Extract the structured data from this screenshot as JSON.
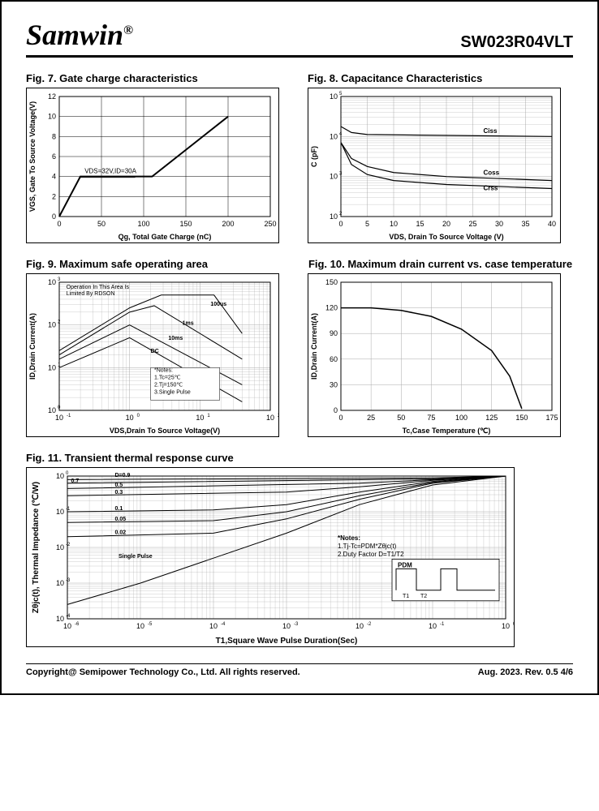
{
  "header": {
    "brand": "Samwin",
    "brand_sup": "®",
    "part": "SW023R04VLT"
  },
  "fig7": {
    "title": "Fig. 7. Gate charge characteristics",
    "type": "line",
    "xlabel": "Qg, Total Gate Charge (nC)",
    "ylabel": "VGS, Gate To Source Voltage(V)",
    "xlim": [
      0,
      250
    ],
    "xtick_step": 50,
    "ylim": [
      0,
      12
    ],
    "ytick_step": 2,
    "annotation": "VDS=32V,ID=30A",
    "series": [
      {
        "points": [
          [
            0,
            0
          ],
          [
            25,
            4
          ],
          [
            110,
            4
          ],
          [
            200,
            10
          ]
        ],
        "color": "#000",
        "width": 2
      }
    ],
    "grid_color": "#000",
    "background_color": "#fff",
    "label_fontsize": 10
  },
  "fig8": {
    "title": "Fig. 8. Capacitance Characteristics",
    "type": "line",
    "xlabel": "VDS, Drain To Source Voltage (V)",
    "ylabel": "C (pF)",
    "xlim": [
      0,
      40
    ],
    "xtick_step": 5,
    "ylim_exp": [
      2,
      5
    ],
    "yscale": "log",
    "series_labels": [
      "Ciss",
      "Coss",
      "Crss"
    ],
    "series": [
      {
        "name": "Ciss",
        "points": [
          [
            0,
            4.25
          ],
          [
            2,
            4.1
          ],
          [
            5,
            4.05
          ],
          [
            40,
            4.0
          ]
        ],
        "color": "#000"
      },
      {
        "name": "Coss",
        "points": [
          [
            0,
            3.85
          ],
          [
            2,
            3.45
          ],
          [
            5,
            3.25
          ],
          [
            10,
            3.1
          ],
          [
            20,
            3.0
          ],
          [
            40,
            2.9
          ]
        ],
        "color": "#000"
      },
      {
        "name": "Crss",
        "points": [
          [
            0,
            3.85
          ],
          [
            2,
            3.3
          ],
          [
            5,
            3.05
          ],
          [
            10,
            2.9
          ],
          [
            20,
            2.8
          ],
          [
            40,
            2.7
          ]
        ],
        "color": "#000"
      }
    ],
    "grid_color": "#aaa",
    "background_color": "#fff",
    "label_fontsize": 10
  },
  "fig9": {
    "title": "Fig. 9. Maximum safe operating area",
    "type": "line",
    "xlabel": "VDS,Drain To Source Voltage(V)",
    "ylabel": "ID,Drain Current(A)",
    "xlim_exp": [
      -1,
      2
    ],
    "xscale": "log",
    "ylim_exp": [
      0,
      3
    ],
    "yscale": "log",
    "annotation1": "Operation In This Area Is",
    "annotation1b": "Limited By RDSON",
    "notes_title": "*Notes:",
    "notes": [
      "1.Tc=25℃",
      "2.Tj=150℃",
      "3.Single Pulse"
    ],
    "labels": [
      "100us",
      "1ms",
      "10ms",
      "DC"
    ],
    "series": [
      {
        "name": "100us",
        "points": [
          [
            -1,
            1.4
          ],
          [
            0,
            2.4
          ],
          [
            0.45,
            2.7
          ],
          [
            1.2,
            2.7
          ],
          [
            1.6,
            1.8
          ]
        ],
        "color": "#000"
      },
      {
        "name": "1ms",
        "points": [
          [
            -1,
            1.3
          ],
          [
            0,
            2.3
          ],
          [
            0.35,
            2.45
          ],
          [
            1.6,
            1.2
          ]
        ],
        "color": "#000"
      },
      {
        "name": "10ms",
        "points": [
          [
            -1,
            1.2
          ],
          [
            0,
            2.0
          ],
          [
            1.6,
            0.6
          ]
        ],
        "color": "#000"
      },
      {
        "name": "DC",
        "points": [
          [
            -1,
            1.0
          ],
          [
            0,
            1.7
          ],
          [
            1.6,
            0.2
          ]
        ],
        "color": "#000"
      }
    ],
    "grid_color": "#aaa",
    "background_color": "#fff",
    "label_fontsize": 10
  },
  "fig10": {
    "title": "Fig. 10. Maximum drain current vs. case temperature",
    "type": "line",
    "xlabel": "Tc,Case Temperature (℃)",
    "ylabel": "ID,Drain Current(A)",
    "xlim": [
      0,
      175
    ],
    "xtick_step": 25,
    "ylim": [
      0,
      150
    ],
    "ytick_step": 30,
    "series": [
      {
        "points": [
          [
            0,
            120
          ],
          [
            25,
            120
          ],
          [
            50,
            117
          ],
          [
            75,
            110
          ],
          [
            100,
            95
          ],
          [
            125,
            70
          ],
          [
            140,
            40
          ],
          [
            150,
            2
          ]
        ],
        "color": "#000",
        "width": 1.5
      }
    ],
    "grid_color": "#aaa",
    "background_color": "#fff",
    "label_fontsize": 10
  },
  "fig11": {
    "title": "Fig. 11. Transient thermal response curve",
    "type": "line",
    "xlabel": "T1,Square Wave Pulse Duration(Sec)",
    "ylabel": "Zθjc(t), Thermal Impedance (℃/W)",
    "xlim_exp": [
      -6,
      0
    ],
    "xscale": "log",
    "ylim_exp": [
      -4,
      0
    ],
    "yscale": "log",
    "d_labels": [
      "D=0.9",
      "0.7",
      "0.5",
      "0.3",
      "0.1",
      "0.05",
      "0.02",
      "Single Pulse"
    ],
    "notes_title": "*Notes:",
    "notes": [
      "1.Tj-Tc=PDM*Zθjc(t)",
      "2.Duty Factor D=T1/T2"
    ],
    "pdm_label": "PDM",
    "t1_label": "T1",
    "t2_label": "T2",
    "series": [
      {
        "name": "D=0.9",
        "points": [
          [
            -6,
            -0.1
          ],
          [
            -1,
            -0.05
          ],
          [
            0,
            0
          ]
        ],
        "color": "#000"
      },
      {
        "name": "0.7",
        "points": [
          [
            -6,
            -0.2
          ],
          [
            -1,
            -0.08
          ],
          [
            0,
            0
          ]
        ],
        "color": "#000"
      },
      {
        "name": "0.5",
        "points": [
          [
            -6,
            -0.35
          ],
          [
            -2,
            -0.2
          ],
          [
            -1,
            -0.1
          ],
          [
            0,
            0
          ]
        ],
        "color": "#000"
      },
      {
        "name": "0.3",
        "points": [
          [
            -6,
            -0.55
          ],
          [
            -3,
            -0.45
          ],
          [
            -2,
            -0.3
          ],
          [
            -1,
            -0.12
          ],
          [
            0,
            0
          ]
        ],
        "color": "#000"
      },
      {
        "name": "0.1",
        "points": [
          [
            -6,
            -1.0
          ],
          [
            -4,
            -0.95
          ],
          [
            -3,
            -0.8
          ],
          [
            -2,
            -0.45
          ],
          [
            -1,
            -0.15
          ],
          [
            0,
            0
          ]
        ],
        "color": "#000"
      },
      {
        "name": "0.05",
        "points": [
          [
            -6,
            -1.3
          ],
          [
            -4,
            -1.25
          ],
          [
            -3,
            -1.0
          ],
          [
            -2,
            -0.55
          ],
          [
            -1,
            -0.18
          ],
          [
            0,
            0
          ]
        ],
        "color": "#000"
      },
      {
        "name": "0.02",
        "points": [
          [
            -6,
            -1.7
          ],
          [
            -4,
            -1.6
          ],
          [
            -3,
            -1.2
          ],
          [
            -2,
            -0.65
          ],
          [
            -1,
            -0.2
          ],
          [
            0,
            0
          ]
        ],
        "color": "#000"
      },
      {
        "name": "Single",
        "points": [
          [
            -6,
            -3.6
          ],
          [
            -5,
            -3.0
          ],
          [
            -4,
            -2.3
          ],
          [
            -3,
            -1.6
          ],
          [
            -2,
            -0.8
          ],
          [
            -1,
            -0.25
          ],
          [
            0,
            0
          ]
        ],
        "color": "#000"
      }
    ],
    "grid_color": "#aaa",
    "background_color": "#fff",
    "label_fontsize": 10
  },
  "footer": {
    "copyright": "Copyright@ Semipower Technology Co., Ltd. All rights reserved.",
    "revinfo": "Aug. 2023. Rev. 0.5   4/6"
  }
}
